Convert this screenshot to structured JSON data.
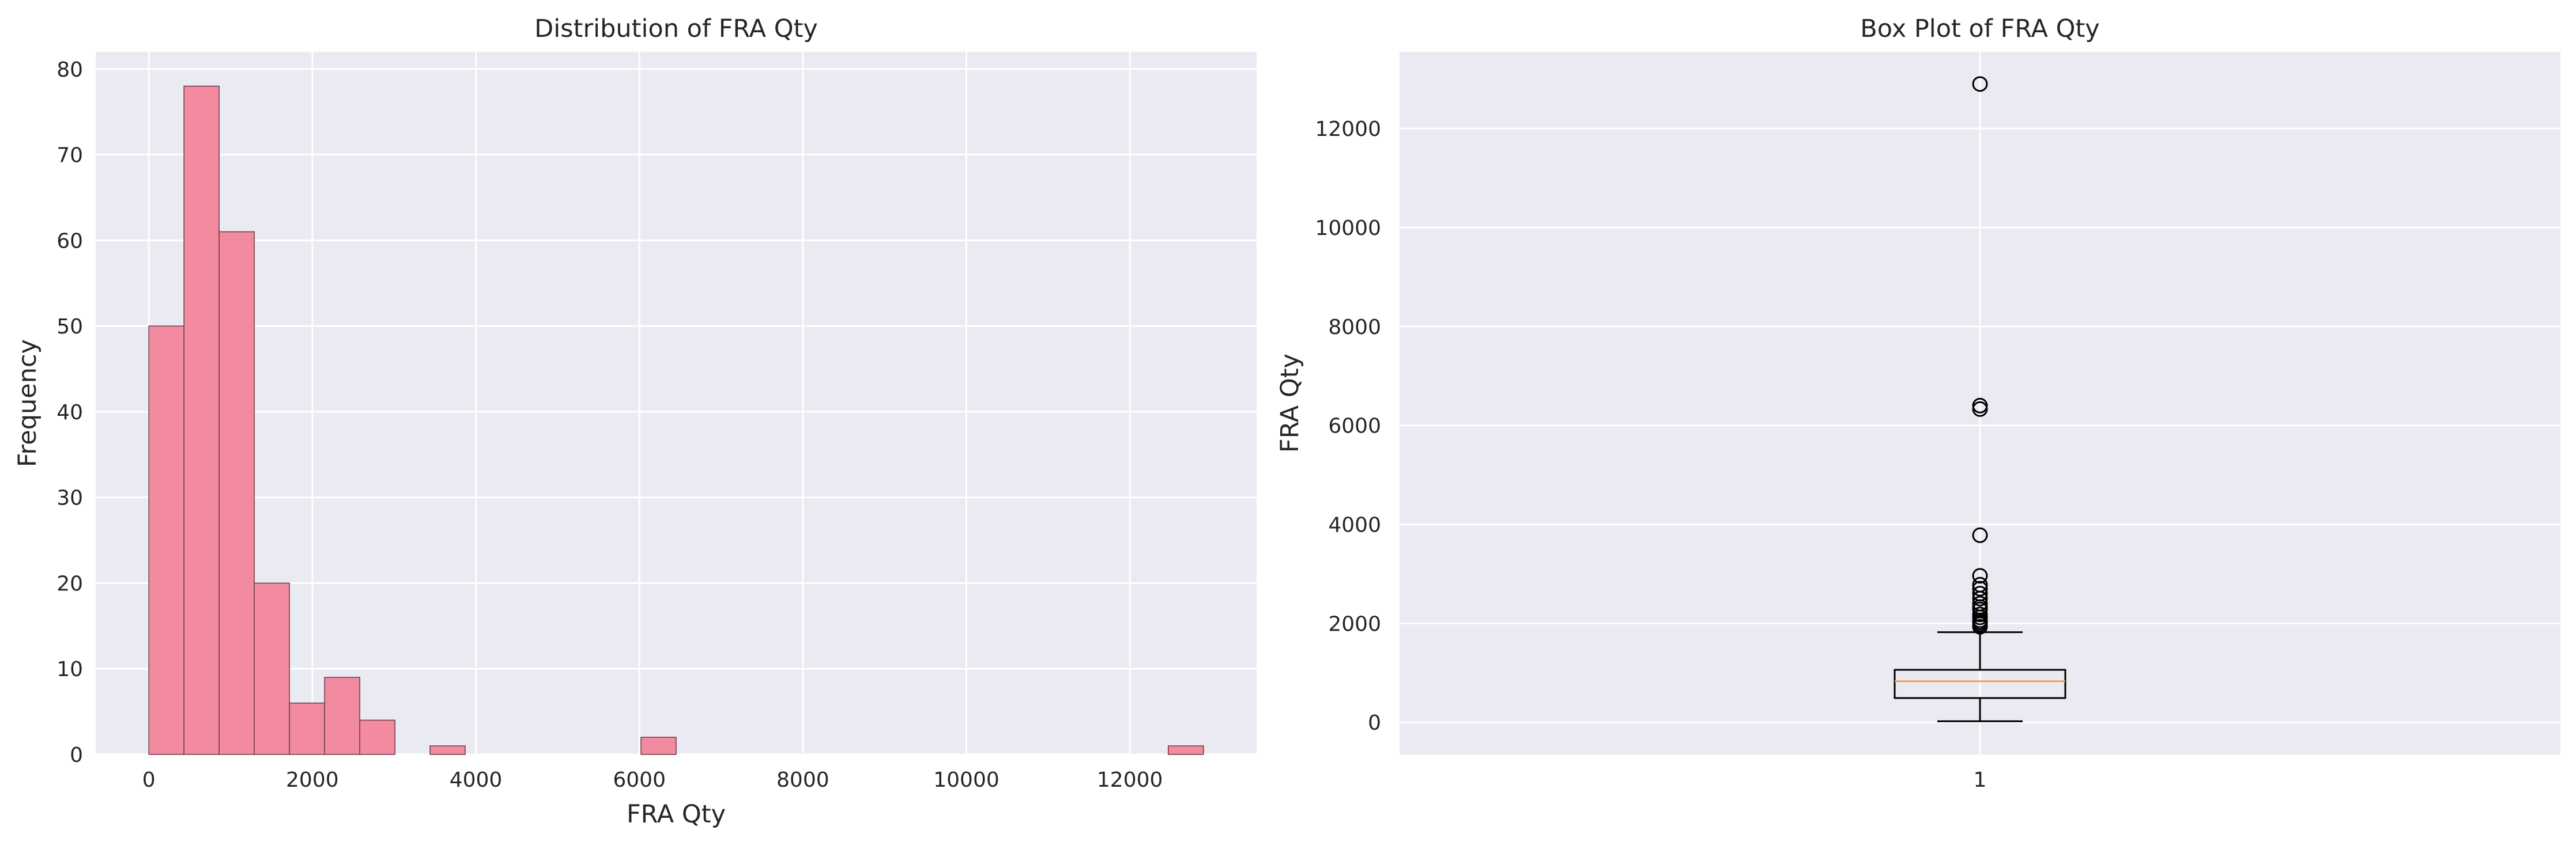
{
  "chart_data": [
    {
      "type": "histogram",
      "title": "Distribution of FRA Qty",
      "xlabel": "FRA Qty",
      "ylabel": "Frequency",
      "xlim": [
        -650,
        13550
      ],
      "ylim": [
        0,
        82
      ],
      "xticks": [
        0,
        2000,
        4000,
        6000,
        8000,
        10000,
        12000
      ],
      "yticks": [
        0,
        10,
        20,
        30,
        40,
        50,
        60,
        70,
        80
      ],
      "grid": true,
      "bins": [
        {
          "x0": 0,
          "x1": 430,
          "count": 50
        },
        {
          "x0": 430,
          "x1": 860,
          "count": 78
        },
        {
          "x0": 860,
          "x1": 1290,
          "count": 61
        },
        {
          "x0": 1290,
          "x1": 1720,
          "count": 20
        },
        {
          "x0": 1720,
          "x1": 2150,
          "count": 6
        },
        {
          "x0": 2150,
          "x1": 2580,
          "count": 9
        },
        {
          "x0": 2580,
          "x1": 3010,
          "count": 4
        },
        {
          "x0": 3010,
          "x1": 3440,
          "count": 0
        },
        {
          "x0": 3440,
          "x1": 3870,
          "count": 1
        },
        {
          "x0": 3870,
          "x1": 4300,
          "count": 0
        },
        {
          "x0": 4300,
          "x1": 4730,
          "count": 0
        },
        {
          "x0": 4730,
          "x1": 5160,
          "count": 0
        },
        {
          "x0": 5160,
          "x1": 5590,
          "count": 0
        },
        {
          "x0": 5590,
          "x1": 6020,
          "count": 0
        },
        {
          "x0": 6020,
          "x1": 6450,
          "count": 2
        },
        {
          "x0": 6450,
          "x1": 6880,
          "count": 0
        },
        {
          "x0": 6880,
          "x1": 7310,
          "count": 0
        },
        {
          "x0": 7310,
          "x1": 7740,
          "count": 0
        },
        {
          "x0": 7740,
          "x1": 8170,
          "count": 0
        },
        {
          "x0": 8170,
          "x1": 8600,
          "count": 0
        },
        {
          "x0": 8600,
          "x1": 9030,
          "count": 0
        },
        {
          "x0": 9030,
          "x1": 9460,
          "count": 0
        },
        {
          "x0": 9460,
          "x1": 9890,
          "count": 0
        },
        {
          "x0": 9890,
          "x1": 10320,
          "count": 0
        },
        {
          "x0": 10320,
          "x1": 10750,
          "count": 0
        },
        {
          "x0": 10750,
          "x1": 11180,
          "count": 0
        },
        {
          "x0": 11180,
          "x1": 11610,
          "count": 0
        },
        {
          "x0": 11610,
          "x1": 12040,
          "count": 0
        },
        {
          "x0": 12040,
          "x1": 12470,
          "count": 0
        },
        {
          "x0": 12470,
          "x1": 12900,
          "count": 1
        }
      ],
      "bar_color": "#f28ba0",
      "edge_color": "#6b3a44"
    },
    {
      "type": "box",
      "title": "Box Plot of FRA Qty",
      "xlabel": "",
      "ylabel": "FRA Qty",
      "categories": [
        "1"
      ],
      "ylim": [
        -650,
        13550
      ],
      "yticks": [
        0,
        2000,
        4000,
        6000,
        8000,
        10000,
        12000
      ],
      "grid": true,
      "stats": {
        "whisker_low": 20,
        "q1": 490,
        "median": 830,
        "q3": 1060,
        "whisker_high": 1820
      },
      "outliers": [
        1930,
        1980,
        2020,
        2060,
        2120,
        2180,
        2280,
        2330,
        2400,
        2500,
        2600,
        2700,
        2780,
        2960,
        3780,
        6330,
        6400,
        12900
      ],
      "median_color": "#e8a15a",
      "box_color": "#000000"
    }
  ],
  "colors": {
    "plot_background": "#eaeaf2",
    "grid": "#ffffff",
    "text": "#262626"
  }
}
